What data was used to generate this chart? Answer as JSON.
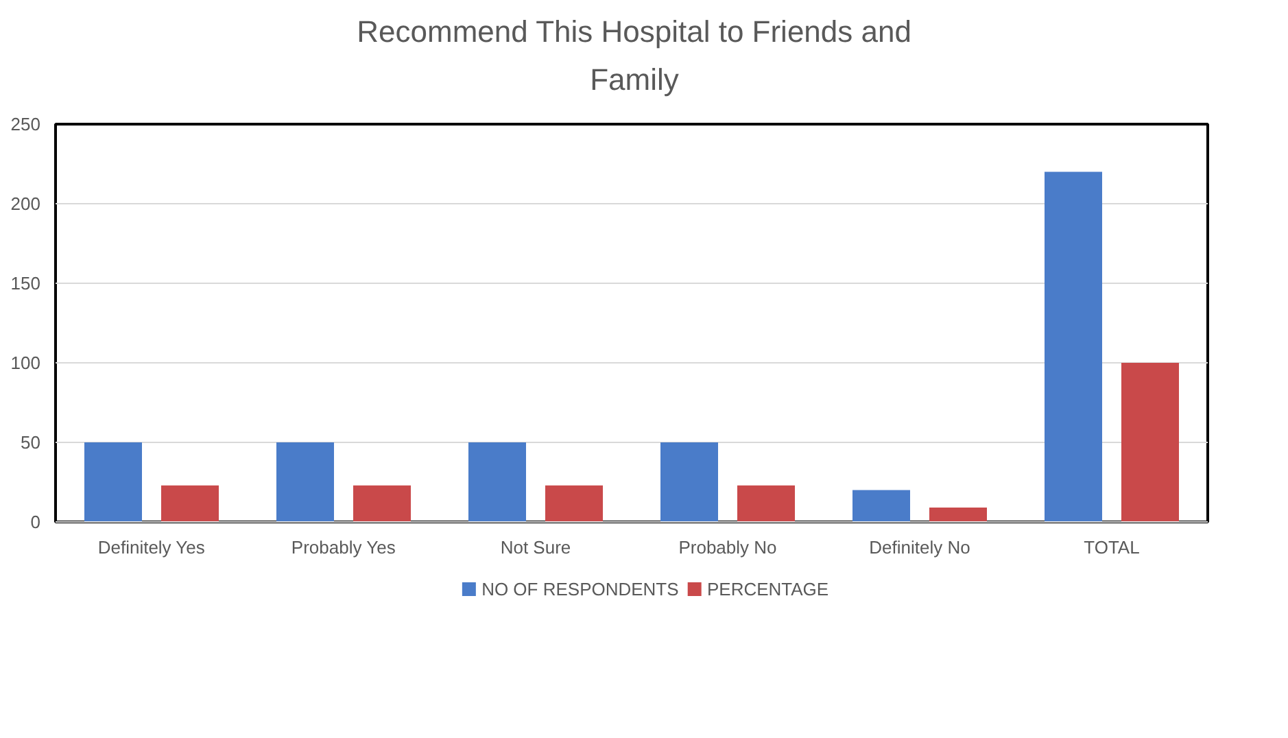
{
  "chart_data": {
    "type": "bar",
    "title": "Recommend This Hospital to Friends and Family",
    "categories": [
      "Definitely Yes",
      "Probably Yes",
      "Not Sure",
      "Probably No",
      "Definitely No",
      "TOTAL"
    ],
    "series": [
      {
        "name": "NO OF RESPONDENTS",
        "color": "#4a7cc9",
        "values": [
          50,
          50,
          50,
          50,
          20,
          220
        ]
      },
      {
        "name": "PERCENTAGE",
        "color": "#c9494a",
        "values": [
          23,
          23,
          23,
          23,
          9,
          100
        ]
      }
    ],
    "ylim": [
      0,
      250
    ],
    "yticks": [
      0,
      50,
      100,
      150,
      200,
      250
    ],
    "grid": "y",
    "legend": "bottom"
  }
}
